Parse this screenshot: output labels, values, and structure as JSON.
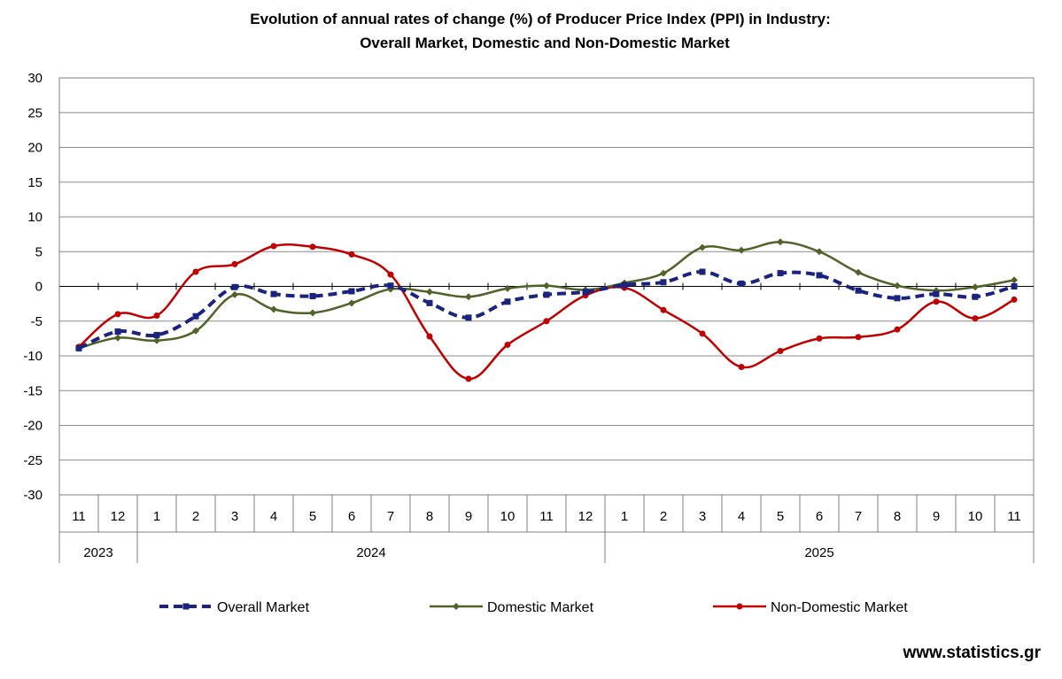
{
  "chart_data": {
    "type": "line",
    "title": [
      "Evolution of annual rates of change (%) of Producer Price Index (PPI) in Industry:",
      "Overall Market, Domestic and Non-Domestic Market"
    ],
    "xlabel": "",
    "ylabel": "",
    "ylim": [
      -30,
      30
    ],
    "yticks": [
      "30",
      "25",
      "20",
      "15",
      "10",
      "5",
      "0",
      "-5",
      "-10",
      "-15",
      "-20",
      "-25",
      "-30"
    ],
    "months": [
      "11",
      "12",
      "1",
      "2",
      "3",
      "4",
      "5",
      "6",
      "7",
      "8",
      "9",
      "10",
      "11",
      "12",
      "1",
      "2",
      "3",
      "4",
      "5",
      "6",
      "7",
      "8",
      "9",
      "10",
      "11"
    ],
    "years": [
      {
        "label": "2023",
        "start": 0,
        "end": 1
      },
      {
        "label": "2024",
        "start": 2,
        "end": 13
      },
      {
        "label": "2025",
        "start": 14,
        "end": 24
      }
    ],
    "grid": true,
    "series": [
      {
        "name": "Overall Market",
        "color": "#1a237e",
        "marker": "square",
        "dash": true,
        "values": [
          -8.9,
          -6.5,
          -7.0,
          -4.3,
          -0.1,
          -1.1,
          -1.4,
          -0.7,
          0.1,
          -2.4,
          -4.5,
          -2.2,
          -1.2,
          -0.8,
          0.2,
          0.6,
          2.1,
          0.4,
          1.9,
          1.6,
          -0.6,
          -1.7,
          -1.1,
          -1.5,
          0.0
        ]
      },
      {
        "name": "Domestic Market",
        "color": "#4f6228",
        "marker": "diamond",
        "dash": false,
        "values": [
          -8.9,
          -7.4,
          -7.8,
          -6.4,
          -1.2,
          -3.3,
          -3.8,
          -2.4,
          -0.4,
          -0.8,
          -1.5,
          -0.3,
          0.1,
          -0.5,
          0.5,
          1.9,
          5.6,
          5.2,
          6.4,
          5.0,
          2.0,
          0.1,
          -0.6,
          -0.1,
          0.9
        ]
      },
      {
        "name": "Non-Domestic Market",
        "color": "#c00000",
        "marker": "circle",
        "dash": false,
        "values": [
          -8.7,
          -4.0,
          -4.2,
          2.1,
          3.2,
          5.8,
          5.7,
          4.6,
          1.7,
          -7.2,
          -13.3,
          -8.4,
          -5.0,
          -1.3,
          -0.2,
          -3.4,
          -6.8,
          -11.6,
          -9.3,
          -7.5,
          -7.3,
          -6.2,
          -2.2,
          -4.6,
          -1.9
        ]
      }
    ],
    "legend_position": "bottom"
  },
  "source": "www.statistics.gr"
}
